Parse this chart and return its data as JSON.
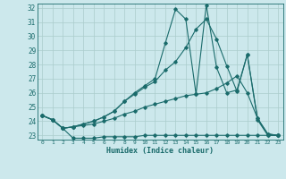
{
  "xlabel": "Humidex (Indice chaleur)",
  "bg_color": "#cce8ec",
  "grid_color": "#aacccc",
  "line_color": "#1a6b6b",
  "xlim": [
    -0.5,
    23.5
  ],
  "ylim": [
    22.7,
    32.3
  ],
  "yticks": [
    23,
    24,
    25,
    26,
    27,
    28,
    29,
    30,
    31,
    32
  ],
  "xticks": [
    0,
    1,
    2,
    3,
    4,
    5,
    6,
    7,
    8,
    9,
    10,
    11,
    12,
    13,
    14,
    15,
    16,
    17,
    18,
    19,
    20,
    21,
    22,
    23
  ],
  "series": [
    [
      24.4,
      24.1,
      23.5,
      22.8,
      22.8,
      22.8,
      22.9,
      22.9,
      22.9,
      22.9,
      23.0,
      23.0,
      23.0,
      23.0,
      23.0,
      23.0,
      23.0,
      23.0,
      23.0,
      23.0,
      23.0,
      23.0,
      23.0,
      23.0
    ],
    [
      24.4,
      24.1,
      23.5,
      23.6,
      23.7,
      23.8,
      24.0,
      24.2,
      24.5,
      24.7,
      25.0,
      25.2,
      25.4,
      25.6,
      25.8,
      25.9,
      26.0,
      26.3,
      26.7,
      27.2,
      26.0,
      24.2,
      23.1,
      23.0
    ],
    [
      24.4,
      24.1,
      23.5,
      23.6,
      23.8,
      24.0,
      24.3,
      24.7,
      25.4,
      25.9,
      26.4,
      26.8,
      27.6,
      28.2,
      29.2,
      30.5,
      31.2,
      29.8,
      27.9,
      26.1,
      28.7,
      24.2,
      23.1,
      23.0
    ],
    [
      24.4,
      24.1,
      23.5,
      23.6,
      23.8,
      24.0,
      24.3,
      24.7,
      25.4,
      26.0,
      26.5,
      27.0,
      29.5,
      31.9,
      31.2,
      25.9,
      32.2,
      27.8,
      26.0,
      26.2,
      28.7,
      24.1,
      23.0,
      23.0
    ]
  ]
}
